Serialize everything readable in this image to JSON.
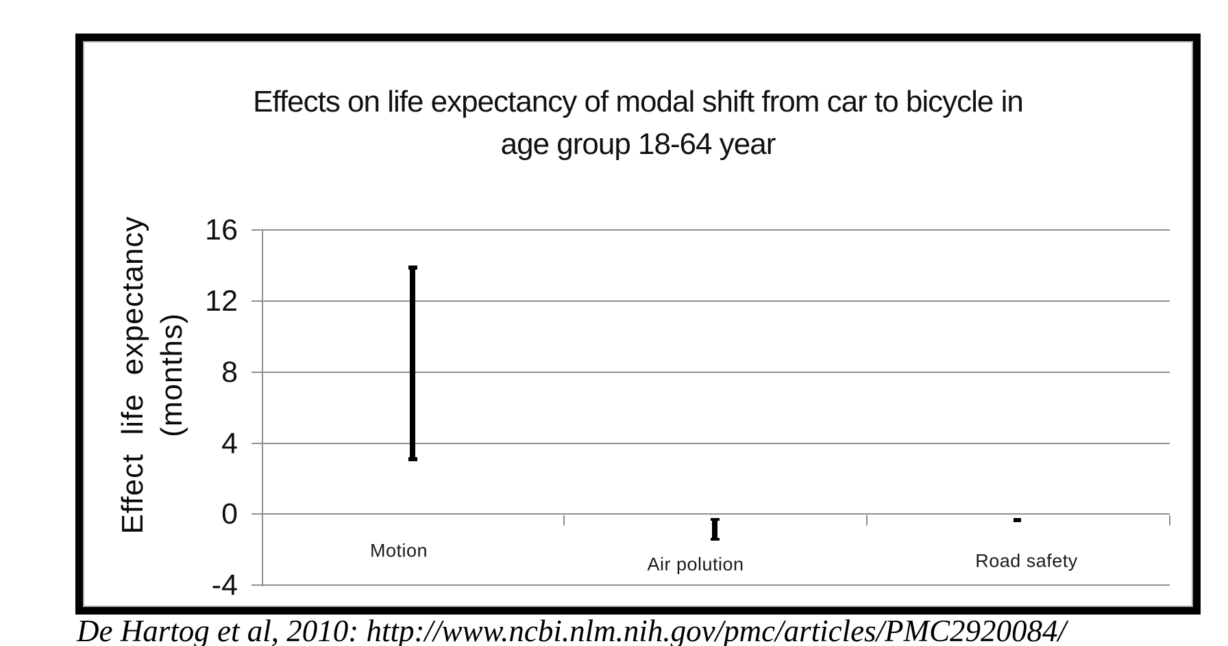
{
  "chart_data": {
    "type": "bar",
    "subtype": "vertical-range-bars",
    "title": "Effects on life expectancy of modal shift from car to bicycle in age group 18-64 year",
    "title_lines": [
      "Effects on life expectancy of modal shift from car to bicycle in",
      "age group 18-64 year"
    ],
    "ylabel": "Effect life expectancy (months)",
    "ylabel_lines": [
      "Effect life expectancy",
      "(months)"
    ],
    "ylim": [
      -4,
      16
    ],
    "yticks": [
      16,
      12,
      8,
      4,
      0,
      -4
    ],
    "grid": true,
    "legend": "none",
    "categories": [
      "Motion",
      "Air polution",
      "Road safety"
    ],
    "series": [
      {
        "name": "Motion",
        "low": 3,
        "high": 14
      },
      {
        "name": "Air polution",
        "low": -1.5,
        "high": -0.2
      },
      {
        "name": "Road safety",
        "low": -0.45,
        "high": -0.2
      }
    ],
    "bar_color": "#000000",
    "grid_color": "#8f8f8f"
  },
  "citation": {
    "text": "De Hartog et al, 2010: http://www.ncbi.nlm.nih.gov/pmc/articles/PMC2920084/"
  }
}
